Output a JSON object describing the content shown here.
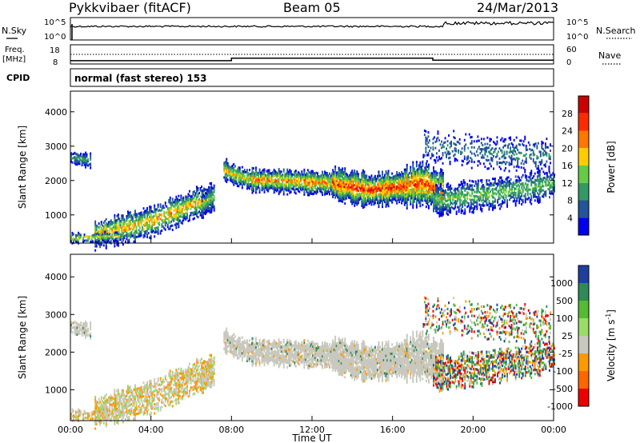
{
  "header": {
    "station": "Pykkvibaer (fitACF)",
    "beam": "Beam 05",
    "date": "24/Mar/2013"
  },
  "strips": {
    "nsky_label": "N.Sky",
    "nsearch_label": "N.Search",
    "nsky_ticks": [
      "10^5",
      "10^0"
    ],
    "nsearch_ticks": [
      "10^5",
      "10^0"
    ],
    "freq_label": "Freq.",
    "freq_unit": "[MHz]",
    "freq_ticks": [
      "18",
      "8"
    ],
    "nave_label": "Nave",
    "nave_ticks": [
      "60",
      "0"
    ],
    "cpid_label": "CPID",
    "cpid_text": "normal (fast stereo) 153",
    "freq_steps": [
      {
        "t0": 0.0,
        "t1": 8.0,
        "mhz": 9.7
      },
      {
        "t0": 8.0,
        "t1": 18.0,
        "mhz": 11.0
      },
      {
        "t0": 18.0,
        "t1": 24.0,
        "mhz": 10.0
      }
    ]
  },
  "chart_data": [
    {
      "type": "heatmap",
      "variable": "power",
      "ylabel": "Slant Range [km]",
      "ylim": [
        180,
        4600
      ],
      "yticks": [
        "4000",
        "3000",
        "2000",
        "1000"
      ],
      "colorbar_label": "Power [dB]",
      "colorbar_ticks": [
        "28",
        "24",
        "20",
        "16",
        "12",
        "8",
        "4"
      ],
      "colorbar_colors": [
        "#cc0000",
        "#ff2a00",
        "#ff7700",
        "#ffcc00",
        "#66cc44",
        "#339966",
        "#225599",
        "#0000ee"
      ]
    },
    {
      "type": "heatmap",
      "variable": "velocity",
      "ylabel": "Slant Range [km]",
      "ylim": [
        180,
        4600
      ],
      "yticks": [
        "4000",
        "3000",
        "2000",
        "1000"
      ],
      "xlabel": "Time UT",
      "xticks": [
        "00:00",
        "04:00",
        "08:00",
        "12:00",
        "16:00",
        "20:00",
        "00:00"
      ],
      "colorbar_label": "Velocity [m s",
      "colorbar_exp": "-1",
      "colorbar_ticks": [
        "1000",
        "500",
        "100",
        "25",
        "-25",
        "-100",
        "-500",
        "-1000"
      ],
      "colorbar_colors": [
        "#1f3fa0",
        "#2e8b57",
        "#55bb33",
        "#99dd66",
        "#c8c8be",
        "#ff9900",
        "#ff6600",
        "#ee0000"
      ]
    }
  ],
  "bands": [
    {
      "t0": 1.2,
      "t1": 7.0,
      "r0": 400,
      "r1": 800,
      "r2": 1500,
      "thick": 380,
      "pmax": 22,
      "vel": "neg",
      "density": 0.7
    },
    {
      "t0": 7.6,
      "t1": 9.0,
      "r0": 2300,
      "r1": 2100,
      "r2": 2000,
      "thick": 260,
      "pmax": 20,
      "vel": "zero",
      "density": 0.85
    },
    {
      "t0": 9.0,
      "t1": 13.0,
      "r0": 2000,
      "r1": 1950,
      "r2": 1900,
      "thick": 300,
      "pmax": 24,
      "vel": "zero",
      "density": 0.9
    },
    {
      "t0": 13.0,
      "t1": 16.5,
      "r0": 1900,
      "r1": 1700,
      "r2": 1800,
      "thick": 420,
      "pmax": 29,
      "vel": "zero",
      "density": 0.95
    },
    {
      "t0": 16.5,
      "t1": 18.5,
      "r0": 1800,
      "r1": 1900,
      "r2": 1600,
      "thick": 520,
      "pmax": 28,
      "vel": "zero",
      "density": 0.9
    },
    {
      "t0": 18.0,
      "t1": 24.0,
      "r0": 1400,
      "r1": 1600,
      "r2": 1900,
      "thick": 380,
      "pmax": 14,
      "vel": "mixed",
      "density": 0.6
    },
    {
      "t0": 0.0,
      "t1": 1.0,
      "r0": 2650,
      "r1": 2600,
      "r2": 2550,
      "thick": 180,
      "pmax": 10,
      "vel": "zero",
      "density": 0.8
    },
    {
      "t0": 6.5,
      "t1": 7.1,
      "r0": 1200,
      "r1": 1400,
      "r2": 1500,
      "thick": 320,
      "pmax": 14,
      "vel": "neg",
      "density": 0.7
    },
    {
      "t0": 17.5,
      "t1": 23.8,
      "r0": 3000,
      "r1": 2800,
      "r2": 2700,
      "thick": 400,
      "pmax": 8,
      "vel": "mixed",
      "density": 0.25
    },
    {
      "t0": 0.0,
      "t1": 2.6,
      "r0": 300,
      "r1": 320,
      "r2": 350,
      "thick": 120,
      "pmax": 20,
      "vel": "neg",
      "density": 0.55
    }
  ]
}
